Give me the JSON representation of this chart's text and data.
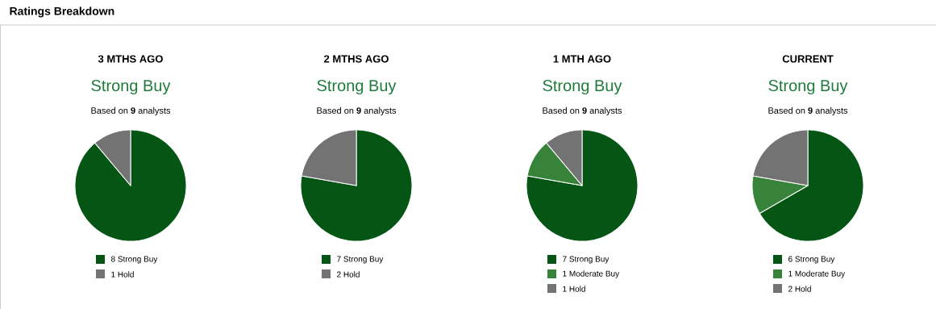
{
  "chart_data": [
    {
      "type": "other",
      "title": "Ratings Breakdown"
    },
    {
      "type": "pie",
      "title": "3 MTHS AGO",
      "subtitle": "Strong Buy",
      "annotations": [
        "Based on **9** analysts"
      ],
      "categories": [
        "Strong Buy",
        "Hold"
      ],
      "values": [
        8,
        1
      ],
      "colors": [
        "#055614",
        "#737373"
      ],
      "data_labels": true,
      "legend": "bottom"
    },
    {
      "type": "pie",
      "title": "2 MTHS AGO",
      "subtitle": "Strong Buy",
      "annotations": [
        "Based on **9** analysts"
      ],
      "categories": [
        "Strong Buy",
        "Hold"
      ],
      "values": [
        7,
        2
      ],
      "colors": [
        "#055614",
        "#737373"
      ],
      "data_labels": true,
      "legend": "bottom"
    },
    {
      "type": "pie",
      "title": "1 MTH AGO",
      "subtitle": "Strong Buy",
      "annotations": [
        "Based on **9** analysts"
      ],
      "categories": [
        "Strong Buy",
        "Moderate Buy",
        "Hold"
      ],
      "values": [
        7,
        1,
        1
      ],
      "colors": [
        "#055614",
        "#38833a",
        "#737373"
      ],
      "data_labels": true,
      "legend": "bottom"
    },
    {
      "type": "pie",
      "title": "CURRENT",
      "subtitle": "Strong Buy",
      "annotations": [
        "Based on **9** analysts"
      ],
      "categories": [
        "Strong Buy",
        "Moderate Buy",
        "Hold"
      ],
      "values": [
        6,
        1,
        2
      ],
      "colors": [
        "#055614",
        "#38833a",
        "#737373"
      ],
      "data_labels": true,
      "legend": "bottom"
    }
  ]
}
